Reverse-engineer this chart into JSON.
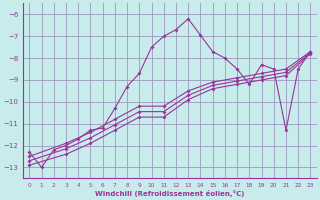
{
  "xlabel": "Windchill (Refroidissement éolien,°C)",
  "background_color": "#c8ecec",
  "grid_color": "#9999bb",
  "line_color": "#993399",
  "xlim": [
    -0.5,
    23.5
  ],
  "ylim": [
    -13.5,
    -5.5
  ],
  "yticks": [
    -13,
    -12,
    -11,
    -10,
    -9,
    -8,
    -7,
    -6
  ],
  "xticks": [
    0,
    1,
    2,
    3,
    4,
    5,
    6,
    7,
    8,
    9,
    10,
    11,
    12,
    13,
    14,
    15,
    16,
    17,
    18,
    19,
    20,
    21,
    22,
    23
  ],
  "curve_main_x": [
    0,
    1,
    2,
    3,
    4,
    5,
    6,
    7,
    8,
    9,
    10,
    11,
    12,
    13,
    14,
    15,
    16,
    17,
    18,
    19,
    20,
    21,
    22,
    23
  ],
  "curve_main_y": [
    -12.3,
    -13.0,
    -12.2,
    -12.0,
    -11.7,
    -11.3,
    -11.2,
    -10.3,
    -9.3,
    -8.7,
    -7.5,
    -7.0,
    -6.7,
    -6.2,
    -6.95,
    -7.7,
    -8.0,
    -8.5,
    -9.2,
    -8.3,
    -8.5,
    -11.3,
    -8.5,
    -7.7
  ],
  "line1_x": [
    0,
    3,
    5,
    7,
    9,
    11,
    13,
    15,
    17,
    19,
    21,
    23
  ],
  "line1_y": [
    -12.5,
    -11.9,
    -11.4,
    -10.8,
    -10.2,
    -10.2,
    -9.5,
    -9.1,
    -8.9,
    -8.7,
    -8.5,
    -7.7
  ],
  "line2_x": [
    0,
    3,
    5,
    7,
    9,
    11,
    13,
    15,
    17,
    19,
    21,
    23
  ],
  "line2_y": [
    -12.7,
    -12.15,
    -11.65,
    -11.05,
    -10.45,
    -10.45,
    -9.7,
    -9.25,
    -9.05,
    -8.85,
    -8.65,
    -7.75
  ],
  "line3_x": [
    0,
    3,
    5,
    7,
    9,
    11,
    13,
    15,
    17,
    19,
    21,
    23
  ],
  "line3_y": [
    -12.9,
    -12.4,
    -11.9,
    -11.3,
    -10.7,
    -10.7,
    -9.9,
    -9.4,
    -9.2,
    -9.0,
    -8.8,
    -7.8
  ]
}
